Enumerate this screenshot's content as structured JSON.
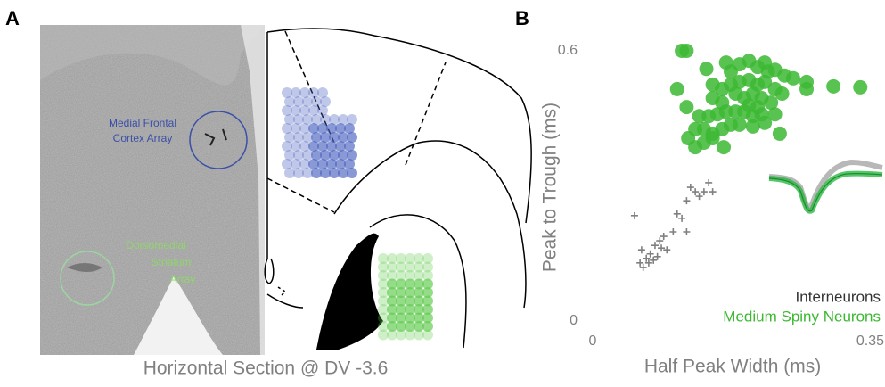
{
  "panel_labels": [
    "A",
    "B"
  ],
  "panel_a": {
    "caption": "Horizontal Section @ DV -3.6",
    "mfc_label_lines": [
      "Medial Frontal",
      "Cortex Array"
    ],
    "dms_label_lines": [
      "Dorsomedial",
      "Striatum",
      "Array"
    ]
  },
  "chart_data": {
    "type": "scatter",
    "xlabel": "Half Peak Width (ms)",
    "ylabel": "Peak to Trough (ms)",
    "xlim": [
      0,
      0.35
    ],
    "ylim": [
      0,
      0.6
    ],
    "xticks": [
      0,
      0.35
    ],
    "yticks": [
      0,
      0.6
    ],
    "grid": false,
    "legend": "lower right",
    "series": [
      {
        "name": "Interneurons",
        "color": "#808080",
        "marker": "plus",
        "x": [
          0.053,
          0.062,
          0.068,
          0.073,
          0.079,
          0.085,
          0.09,
          0.094,
          0.064,
          0.071,
          0.077,
          0.082,
          0.102,
          0.107,
          0.113,
          0.119,
          0.124,
          0.13,
          0.135,
          0.141,
          0.147,
          0.152,
          0.119,
          0.06,
          0.087
        ],
        "values": [
          0.234,
          0.158,
          0.139,
          0.149,
          0.168,
          0.178,
          0.188,
          0.158,
          0.119,
          0.129,
          0.135,
          0.143,
          0.198,
          0.238,
          0.228,
          0.267,
          0.297,
          0.287,
          0.277,
          0.287,
          0.307,
          0.287,
          0.198,
          0.129,
          0.162
        ]
      },
      {
        "name": "Medium Spiny Neurons",
        "color": "#3cb832",
        "marker": "circle",
        "x": [
          0.113,
          0.119,
          0.144,
          0.169,
          0.175,
          0.186,
          0.198,
          0.209,
          0.218,
          0.222,
          0.231,
          0.243,
          0.254,
          0.271,
          0.305,
          0.339,
          0.152,
          0.164,
          0.175,
          0.186,
          0.198,
          0.209,
          0.218,
          0.231,
          0.24,
          0.181,
          0.192,
          0.203,
          0.214,
          0.226,
          0.152,
          0.164,
          0.135,
          0.147,
          0.158,
          0.169,
          0.181,
          0.192,
          0.203,
          0.214,
          0.231,
          0.13,
          0.141,
          0.152,
          0.164,
          0.175,
          0.186,
          0.203,
          0.218,
          0.237,
          0.121,
          0.141,
          0.152,
          0.166,
          0.13,
          0.107,
          0.119,
          0.271,
          0.198,
          0.209
        ],
        "values": [
          0.6,
          0.6,
          0.56,
          0.574,
          0.554,
          0.57,
          0.578,
          0.564,
          0.574,
          0.554,
          0.558,
          0.545,
          0.539,
          0.531,
          0.521,
          0.519,
          0.525,
          0.515,
          0.525,
          0.531,
          0.535,
          0.525,
          0.531,
          0.515,
          0.505,
          0.505,
          0.495,
          0.505,
          0.495,
          0.485,
          0.495,
          0.485,
          0.455,
          0.455,
          0.459,
          0.465,
          0.465,
          0.465,
          0.455,
          0.459,
          0.459,
          0.426,
          0.426,
          0.416,
          0.426,
          0.436,
          0.436,
          0.432,
          0.44,
          0.416,
          0.406,
          0.396,
          0.406,
          0.386,
          0.386,
          0.515,
          0.475,
          0.515,
          0.479,
          0.475
        ]
      }
    ]
  }
}
